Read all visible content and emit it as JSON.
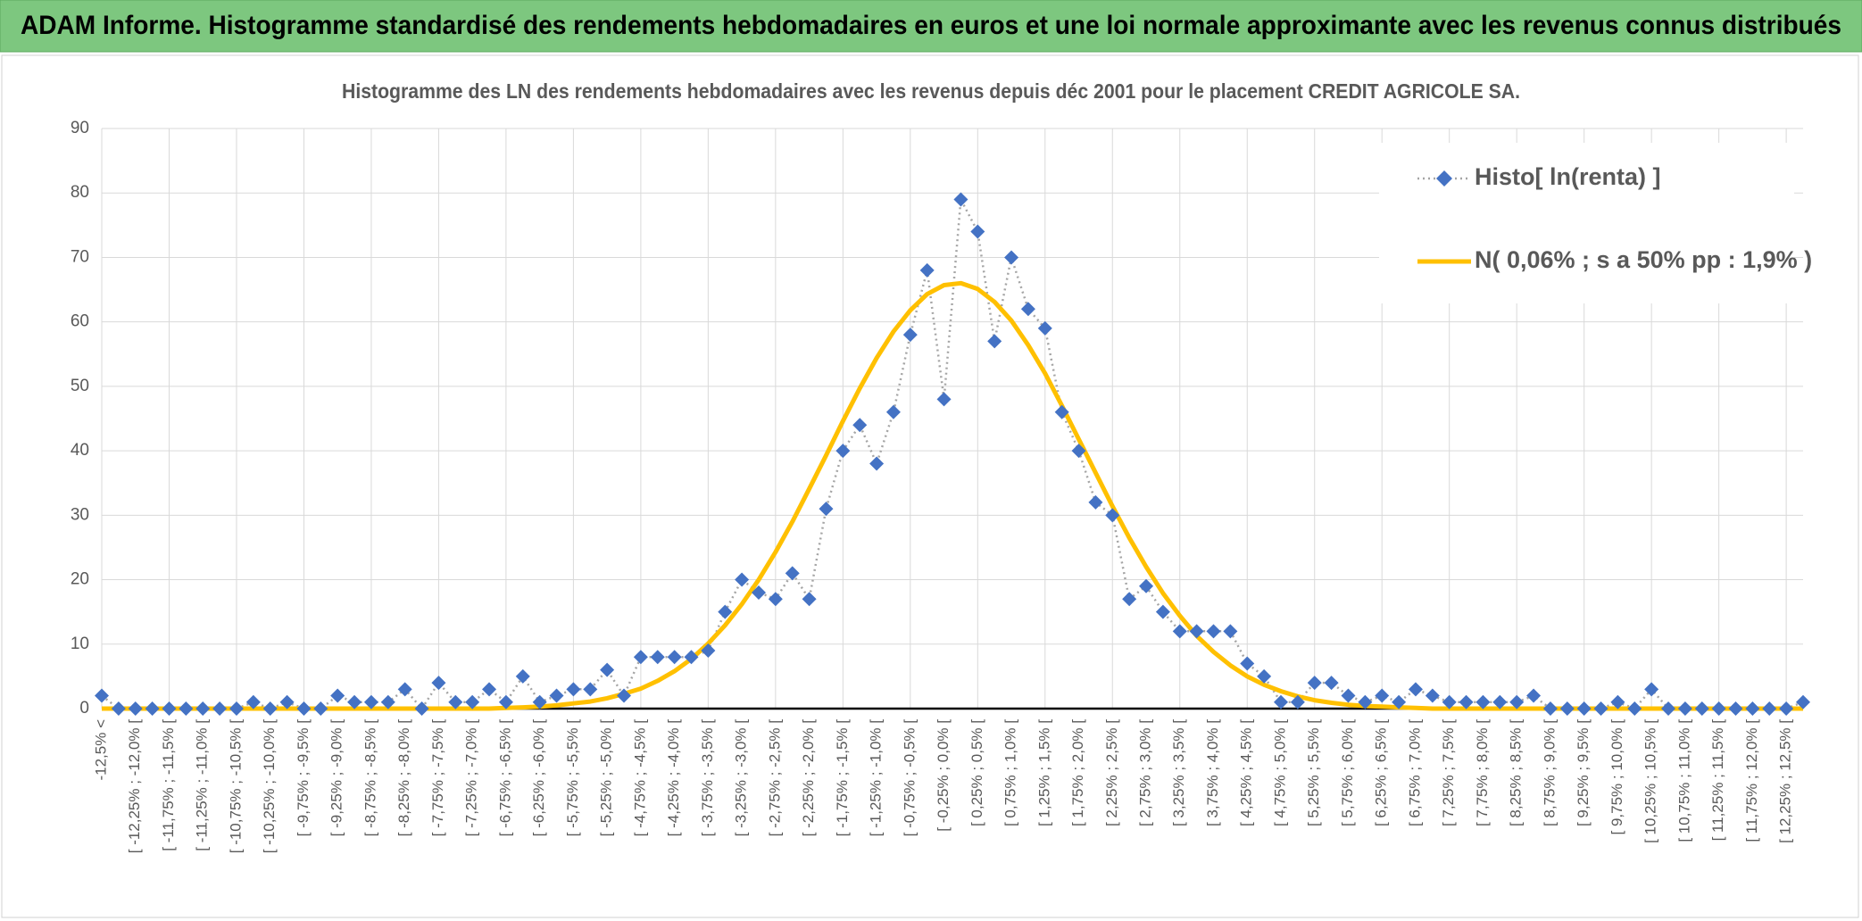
{
  "banner": "ADAM Informe. Histogramme standardisé des rendements hebdomadaires en euros et une loi normale approximante avec les revenus connus distribués",
  "chart_data": {
    "type": "line",
    "title": "Histogramme des LN des rendements hebdomadaires avec les revenus depuis déc 2001 pour le placement CREDIT AGRICOLE SA.",
    "categories": [
      "-12,5% <",
      null,
      "[ -12,25% ; -12,0% [",
      null,
      "[ -11,75% ; -11,5% [",
      null,
      "[ -11,25% ; -11,0% [",
      null,
      "[ -10,75% ; -10,5% [",
      null,
      "[ -10,25% ; -10,0% [",
      null,
      "[ -9,75% ; -9,5% [",
      null,
      "[ -9,25% ; -9,0% [",
      null,
      "[ -8,75% ; -8,5% [",
      null,
      "[ -8,25% ; -8,0% [",
      null,
      "[ -7,75% ; -7,5% [",
      null,
      "[ -7,25% ; -7,0% [",
      null,
      "[ -6,75% ; -6,5% [",
      null,
      "[ -6,25% ; -6,0% [",
      null,
      "[ -5,75% ; -5,5% [",
      null,
      "[ -5,25% ; -5,0% [",
      null,
      "[ -4,75% ; -4,5% [",
      null,
      "[ -4,25% ; -4,0% [",
      null,
      "[ -3,75% ; -3,5% [",
      null,
      "[ -3,25% ; -3,0% [",
      null,
      "[ -2,75% ; -2,5% [",
      null,
      "[ -2,25% ; -2,0% [",
      null,
      "[ -1,75% ; -1,5% [",
      null,
      "[ -1,25% ; -1,0% [",
      null,
      "[ -0,75% ; -0,5% [",
      null,
      "[ -0,25% ; 0,0% [",
      null,
      "[ 0,25% ; 0,5% [",
      null,
      "[ 0,75% ; 1,0% [",
      null,
      "[ 1,25% ; 1,5% [",
      null,
      "[ 1,75% ; 2,0% [",
      null,
      "[ 2,25% ; 2,5% [",
      null,
      "[ 2,75% ; 3,0% [",
      null,
      "[ 3,25% ; 3,5% [",
      null,
      "[ 3,75% ; 4,0% [",
      null,
      "[ 4,25% ; 4,5% [",
      null,
      "[ 4,75% ; 5,0% [",
      null,
      "[ 5,25% ; 5,5% [",
      null,
      "[ 5,75% ; 6,0% [",
      null,
      "[ 6,25% ; 6,5% [",
      null,
      "[ 6,75% ; 7,0% [",
      null,
      "[ 7,25% ; 7,5% [",
      null,
      "[ 7,75% ; 8,0% [",
      null,
      "[ 8,25% ; 8,5% [",
      null,
      "[ 8,75% ; 9,0% [",
      null,
      "[ 9,25% ; 9,5% [",
      null,
      "[ 9,75% ; 10,0% [",
      null,
      "[ 10,25% ; 10,5% [",
      null,
      "[ 10,75% ; 11,0% [",
      null,
      "[ 11,25% ; 11,5% [",
      null,
      "[ 11,75% ; 12,0% [",
      null,
      "[ 12,25% ; 12,5% [",
      null
    ],
    "series": [
      {
        "name": "Histo[ ln(renta) ]",
        "color": "#4472c4",
        "values": [
          2,
          0,
          0,
          0,
          0,
          0,
          0,
          0,
          0,
          1,
          0,
          1,
          0,
          0,
          2,
          1,
          1,
          1,
          3,
          0,
          4,
          1,
          1,
          3,
          1,
          5,
          1,
          2,
          3,
          3,
          6,
          2,
          8,
          8,
          8,
          8,
          9,
          15,
          20,
          18,
          17,
          21,
          17,
          31,
          40,
          44,
          38,
          46,
          58,
          68,
          48,
          79,
          74,
          57,
          70,
          62,
          59,
          46,
          40,
          32,
          30,
          17,
          19,
          15,
          12,
          12,
          12,
          12,
          7,
          5,
          1,
          1,
          4,
          4,
          2,
          1,
          2,
          1,
          3,
          2,
          1,
          1,
          1,
          1,
          1,
          2,
          0,
          0,
          0,
          0,
          1,
          0,
          3,
          0,
          0,
          0,
          0,
          0,
          0,
          0,
          0,
          1
        ]
      },
      {
        "name": "N( 0,06% ; s a 50% pp : 1,9% )",
        "color": "#ffc000",
        "values": [
          0,
          0,
          0,
          0,
          0,
          0,
          0,
          0,
          0,
          0,
          0,
          0,
          0,
          0,
          0,
          0,
          0,
          0,
          0,
          0,
          0,
          0,
          0,
          0,
          0.1,
          0.2,
          0.3,
          0.5,
          0.8,
          1.1,
          1.6,
          2.3,
          3.1,
          4.3,
          5.8,
          7.7,
          10.1,
          12.9,
          16.2,
          20.0,
          24.3,
          29.0,
          34.1,
          39.3,
          44.6,
          49.7,
          54.4,
          58.5,
          61.8,
          64.3,
          65.7,
          66.0,
          65.1,
          63.1,
          60.2,
          56.4,
          52.0,
          47.0,
          41.8,
          36.6,
          31.4,
          26.5,
          22.0,
          17.9,
          14.4,
          11.3,
          8.8,
          6.7,
          5.0,
          3.7,
          2.7,
          1.9,
          1.3,
          0.9,
          0.6,
          0.4,
          0.3,
          0.2,
          0.1,
          0,
          0,
          0,
          0,
          0,
          0,
          0,
          0,
          0,
          0,
          0,
          0,
          0,
          0,
          0,
          0,
          0,
          0,
          0,
          0,
          0,
          0,
          0
        ]
      }
    ],
    "ylim": [
      0,
      90
    ],
    "yticks": [
      0,
      10,
      20,
      30,
      40,
      50,
      60,
      70,
      80,
      90
    ],
    "grid": true,
    "legend": "top-right"
  }
}
